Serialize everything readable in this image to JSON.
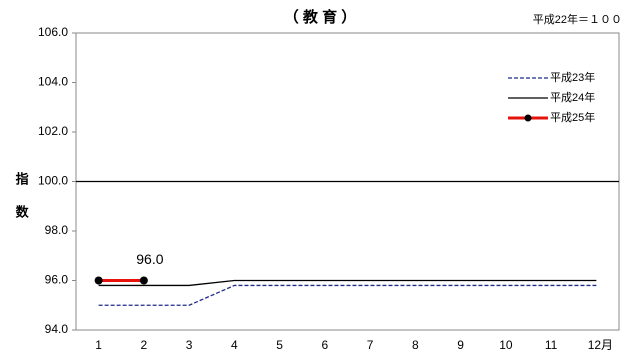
{
  "chart_data": {
    "type": "line",
    "title": "（ 教 育 ）",
    "note": "平成22年＝１００",
    "y_label": "指数",
    "categories": [
      "1",
      "2",
      "3",
      "4",
      "5",
      "6",
      "7",
      "8",
      "9",
      "10",
      "11",
      "12月"
    ],
    "series": [
      {
        "name": "平成23年",
        "color": "#1f2a8a",
        "dash": true,
        "markers": false,
        "values": [
          95.0,
          95.0,
          95.0,
          95.8,
          95.8,
          95.8,
          95.8,
          95.8,
          95.8,
          95.8,
          95.8,
          95.8
        ]
      },
      {
        "name": "平成24年",
        "color": "#000000",
        "dash": false,
        "markers": false,
        "values": [
          95.8,
          95.8,
          95.8,
          96.0,
          96.0,
          96.0,
          96.0,
          96.0,
          96.0,
          96.0,
          96.0,
          96.0
        ]
      },
      {
        "name": "平成25年",
        "color": "#e8120c",
        "dash": false,
        "markers": true,
        "values": [
          96.0,
          96.0,
          null,
          null,
          null,
          null,
          null,
          null,
          null,
          null,
          null,
          null
        ],
        "value_labels": [
          null,
          "96.0",
          null,
          null,
          null,
          null,
          null,
          null,
          null,
          null,
          null,
          null
        ]
      }
    ],
    "reference_line": 100,
    "ylim": [
      94,
      106
    ],
    "yticks": [
      {
        "value": 94,
        "label": "94.0"
      },
      {
        "value": 96,
        "label": "96.0"
      },
      {
        "value": 98,
        "label": "98.0"
      },
      {
        "value": 100,
        "label": "100.0"
      },
      {
        "value": 102,
        "label": "102.0"
      },
      {
        "value": 104,
        "label": "104.0"
      },
      {
        "value": 106,
        "label": "106.0"
      }
    ],
    "legend": "upper right"
  }
}
